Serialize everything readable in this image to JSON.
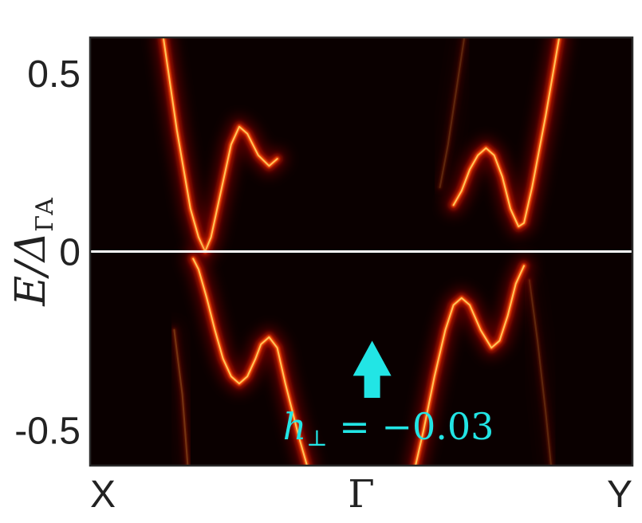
{
  "chart_data": {
    "type": "heatmap",
    "title": "",
    "ylabel": {
      "main": "E/Δ",
      "subscript": "ΓA"
    },
    "xlabel": "",
    "ylim": [
      -0.6,
      0.6
    ],
    "y_ticks": [
      {
        "value": 0.5,
        "label": "0.5"
      },
      {
        "value": 0,
        "label": "0"
      },
      {
        "value": -0.5,
        "label": "-0.5"
      }
    ],
    "x_ticks": [
      {
        "value": 0,
        "label": "X"
      },
      {
        "value": 0.5,
        "label": "Γ"
      },
      {
        "value": 1,
        "label": "Y"
      }
    ],
    "fermi_level": 0,
    "colormap": "hot",
    "background_color": "#0a0000",
    "fermi_line_color": "#ffffff",
    "annotation": {
      "label_main": "h",
      "label_sub": "⊥",
      "label_rest": " = −0.03",
      "color": "#22e5e5",
      "arrow_direction": "up",
      "arrow_k": 0.52,
      "arrow_E_base": -0.41,
      "arrow_E_tip": -0.25,
      "label_k": 0.55,
      "label_E": -0.49
    },
    "bands": [
      {
        "name": "",
        "intensity": 1.0,
        "points": [
          [
            0.135,
            0.6
          ],
          [
            0.16,
            0.34
          ],
          [
            0.185,
            0.12
          ],
          [
            0.2,
            0.04
          ],
          [
            0.212,
            0.0
          ],
          [
            0.223,
            0.04
          ],
          [
            0.24,
            0.16
          ],
          [
            0.26,
            0.3
          ],
          [
            0.275,
            0.35
          ],
          [
            0.29,
            0.33
          ],
          [
            0.31,
            0.27
          ],
          [
            0.33,
            0.24
          ],
          [
            0.345,
            0.26
          ]
        ]
      },
      {
        "name": "",
        "intensity": 1.0,
        "points": [
          [
            0.19,
            -0.02
          ],
          [
            0.2,
            -0.05
          ],
          [
            0.215,
            -0.13
          ],
          [
            0.23,
            -0.22
          ],
          [
            0.245,
            -0.3
          ],
          [
            0.26,
            -0.35
          ],
          [
            0.275,
            -0.37
          ],
          [
            0.29,
            -0.35
          ],
          [
            0.305,
            -0.3
          ],
          [
            0.315,
            -0.26
          ],
          [
            0.33,
            -0.24
          ],
          [
            0.345,
            -0.27
          ],
          [
            0.36,
            -0.37
          ],
          [
            0.385,
            -0.52
          ],
          [
            0.4,
            -0.6
          ]
        ]
      },
      {
        "name": "",
        "intensity": 1.0,
        "points": [
          [
            0.6,
            -0.6
          ],
          [
            0.615,
            -0.5
          ],
          [
            0.635,
            -0.35
          ],
          [
            0.655,
            -0.22
          ],
          [
            0.67,
            -0.15
          ],
          [
            0.685,
            -0.13
          ],
          [
            0.7,
            -0.15
          ],
          [
            0.72,
            -0.22
          ],
          [
            0.74,
            -0.27
          ],
          [
            0.755,
            -0.25
          ],
          [
            0.77,
            -0.18
          ],
          [
            0.785,
            -0.09
          ],
          [
            0.8,
            -0.04
          ]
        ]
      },
      {
        "name": "",
        "intensity": 1.0,
        "points": [
          [
            0.67,
            0.13
          ],
          [
            0.685,
            0.17
          ],
          [
            0.7,
            0.23
          ],
          [
            0.715,
            0.27
          ],
          [
            0.73,
            0.29
          ],
          [
            0.745,
            0.27
          ],
          [
            0.76,
            0.21
          ],
          [
            0.775,
            0.12
          ],
          [
            0.79,
            0.07
          ],
          [
            0.8,
            0.08
          ],
          [
            0.815,
            0.18
          ],
          [
            0.84,
            0.38
          ],
          [
            0.865,
            0.6
          ]
        ]
      }
    ],
    "ghost_bands": [
      {
        "name": "",
        "intensity": 0.2,
        "points": [
          [
            0.155,
            -0.22
          ],
          [
            0.17,
            -0.4
          ],
          [
            0.18,
            -0.6
          ]
        ]
      },
      {
        "name": "",
        "intensity": 0.15,
        "points": [
          [
            0.645,
            0.18
          ],
          [
            0.66,
            0.3
          ],
          [
            0.675,
            0.45
          ],
          [
            0.69,
            0.6
          ]
        ]
      },
      {
        "name": "",
        "intensity": 0.15,
        "points": [
          [
            0.81,
            -0.08
          ],
          [
            0.825,
            -0.25
          ],
          [
            0.84,
            -0.45
          ],
          [
            0.85,
            -0.6
          ]
        ]
      }
    ]
  }
}
